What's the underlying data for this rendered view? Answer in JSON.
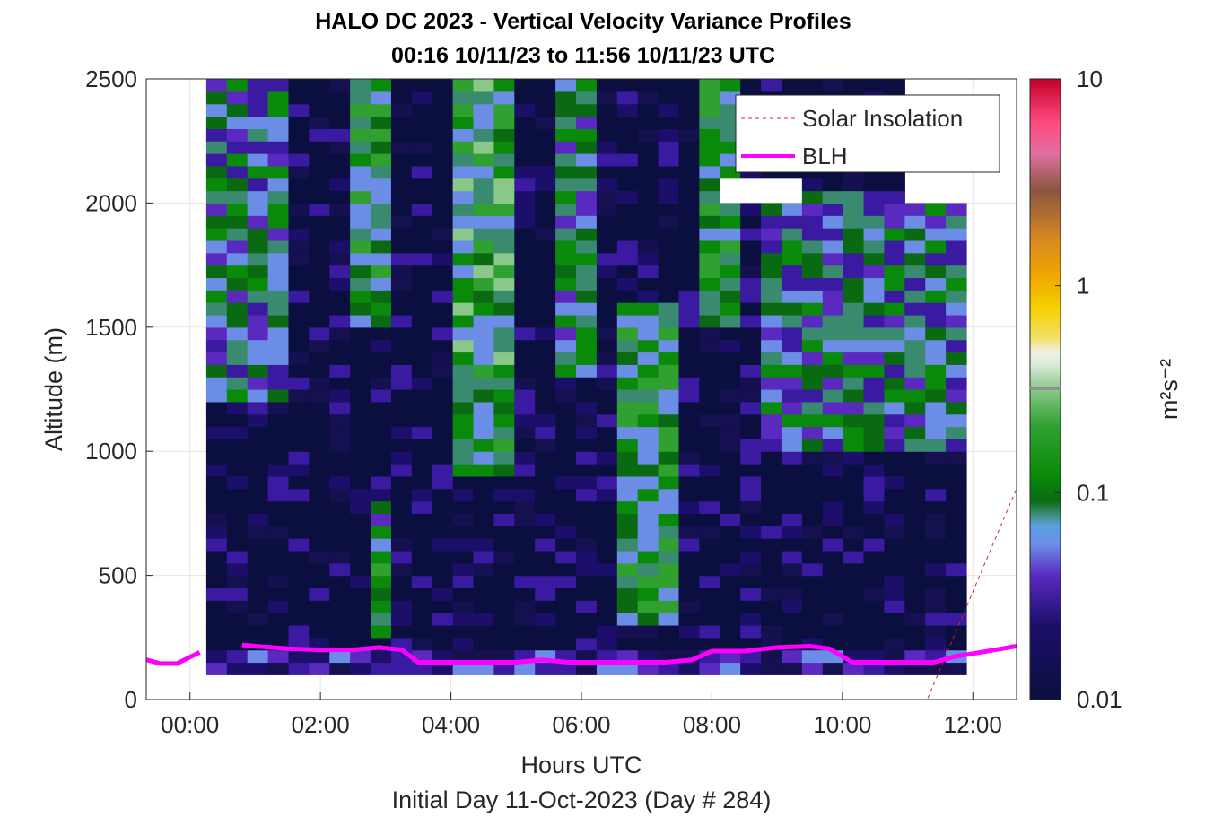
{
  "chart_data": {
    "type": "heatmap",
    "title": "HALO DC 2023 - Vertical Velocity Variance Profiles",
    "subtitle": "00:16 10/11/23 to 11:56 10/11/23  UTC",
    "xlabel": "Hours UTC",
    "xlabel2": "Initial Day 11-Oct-2023 (Day # 284)",
    "ylabel": "Altitude (m)",
    "colorbar_label": "m²s⁻²",
    "x_tick_labels": [
      "00:00",
      "02:00",
      "04:00",
      "06:00",
      "08:00",
      "10:00",
      "12:00"
    ],
    "x_ticks_hours": [
      0,
      2,
      4,
      6,
      8,
      10,
      12
    ],
    "y_ticks": [
      0,
      500,
      1000,
      1500,
      2000,
      2500
    ],
    "xlim_hours": [
      -0.67,
      12.67
    ],
    "ylim": [
      0,
      2500
    ],
    "color_scale": "log",
    "clim": [
      0.01,
      10
    ],
    "colorbar_ticks": [
      "0.01",
      "0.1",
      "1",
      "10"
    ],
    "grid": true,
    "legend_position": "top-right",
    "legend": [
      {
        "name": "Solar Insolation",
        "style": "dashed",
        "color": "#e02020"
      },
      {
        "name": "BLH",
        "style": "solid",
        "color": "#ff00ff"
      }
    ],
    "heatmap_x_range_hours": [
      0.25,
      11.9
    ],
    "heatmap_y_range": [
      100,
      2500
    ],
    "blh": {
      "x": [
        -0.67,
        -0.45,
        -0.2,
        0.15,
        0.5,
        0.8,
        1.0,
        1.5,
        2.0,
        2.5,
        2.9,
        3.25,
        3.5,
        4.0,
        4.5,
        5.0,
        5.4,
        5.8,
        6.2,
        6.8,
        7.3,
        7.7,
        8.0,
        8.5,
        9.0,
        9.5,
        9.8,
        10.15,
        10.5,
        11.0,
        11.4,
        11.75,
        12.0,
        12.67
      ],
      "y": [
        160,
        145,
        145,
        190,
        null,
        220,
        215,
        205,
        200,
        200,
        210,
        200,
        150,
        150,
        150,
        150,
        160,
        150,
        150,
        150,
        150,
        160,
        195,
        195,
        210,
        215,
        205,
        150,
        150,
        150,
        150,
        175,
        185,
        215
      ]
    },
    "solar_insolation": {
      "x": [
        -0.67,
        11.3,
        12.67
      ],
      "y": [
        0,
        0,
        850
      ]
    }
  }
}
